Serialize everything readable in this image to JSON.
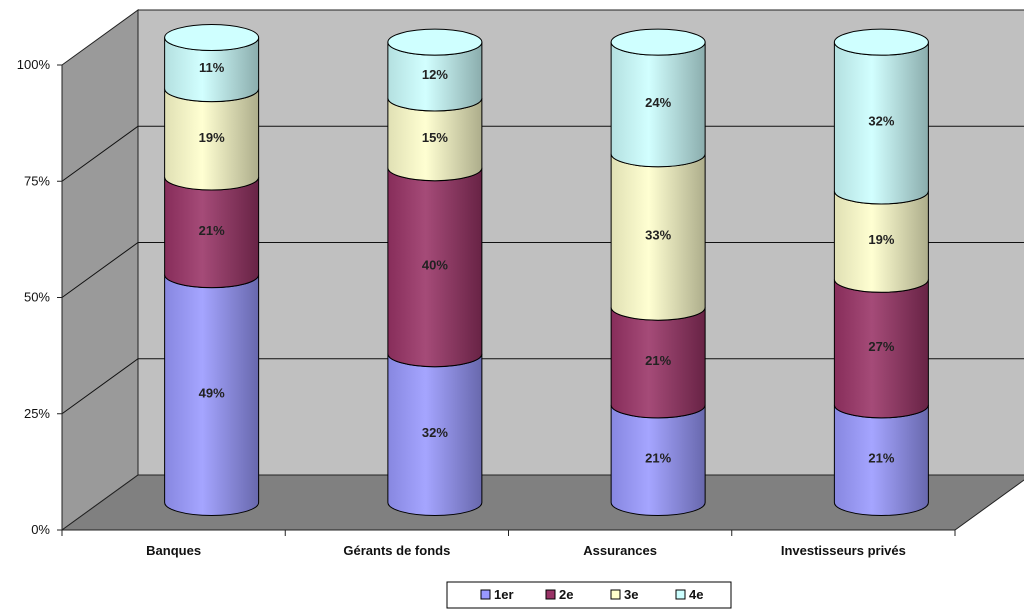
{
  "chart_data": {
    "type": "bar",
    "stacked": true,
    "style": "3d-cylinder",
    "categories": [
      "Banques",
      "Gérants de fonds",
      "Assurances",
      "Investisseurs privés"
    ],
    "series": [
      {
        "name": "1er",
        "color": "#9999ff",
        "values": [
          49,
          32,
          21,
          21
        ]
      },
      {
        "name": "2e",
        "color": "#993366",
        "values": [
          21,
          40,
          21,
          27
        ]
      },
      {
        "name": "3e",
        "color": "#ffffcc",
        "values": [
          19,
          15,
          33,
          19
        ]
      },
      {
        "name": "4e",
        "color": "#ccffff",
        "values": [
          11,
          12,
          24,
          32
        ]
      }
    ],
    "value_suffix": "%",
    "yticks": [
      "0%",
      "25%",
      "50%",
      "75%",
      "100%"
    ],
    "ylim": [
      0,
      100
    ],
    "grid": true,
    "legend_position": "bottom",
    "wall_color": "#c0c0c0",
    "floor_color": "#808080"
  }
}
